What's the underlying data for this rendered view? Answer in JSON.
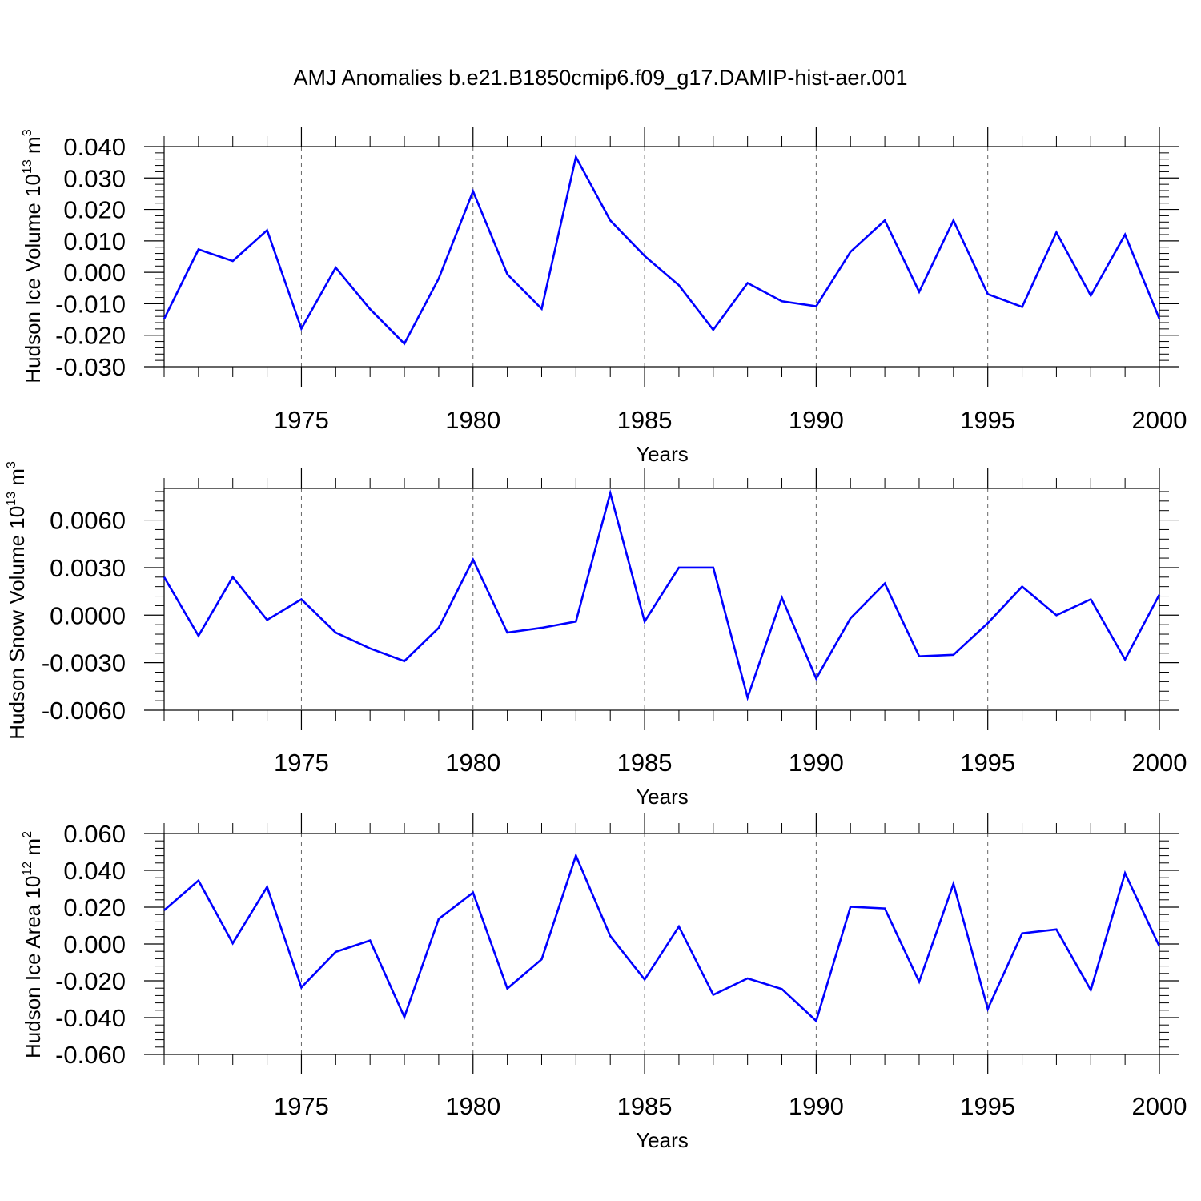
{
  "title": "AMJ Anomalies b.e21.B1850cmip6.f09_g17.DAMIP-hist-aer.001",
  "line_color": "#0000ff",
  "chart_data": [
    {
      "type": "line",
      "ylabel": "Hudson Ice Volume 10",
      "ylabel_exp": "13",
      "ylabel_unit": " m",
      "ylabel_unit_exp": "3",
      "xlabel": "Years",
      "xlim": [
        1971,
        2000
      ],
      "ylim": [
        -0.03,
        0.04
      ],
      "yticks": [
        -0.03,
        -0.02,
        -0.01,
        0.0,
        0.01,
        0.02,
        0.03,
        0.04
      ],
      "ytick_labels": [
        "-0.030",
        "-0.020",
        "-0.010",
        "0.000",
        "0.010",
        "0.020",
        "0.030",
        "0.040"
      ],
      "yminor_step": 0.002,
      "xticks": [
        1975,
        1980,
        1985,
        1990,
        1995,
        2000
      ],
      "xtick_labels": [
        "1975",
        "1980",
        "1985",
        "1990",
        "1995",
        "2000"
      ],
      "x": [
        1971,
        1972,
        1973,
        1974,
        1975,
        1976,
        1977,
        1978,
        1979,
        1980,
        1981,
        1982,
        1983,
        1984,
        1985,
        1986,
        1987,
        1988,
        1989,
        1990,
        1991,
        1992,
        1993,
        1994,
        1995,
        1996,
        1997,
        1998,
        1999,
        2000
      ],
      "values": [
        -0.0148,
        0.0073,
        0.0036,
        0.0134,
        -0.0179,
        0.0015,
        -0.0117,
        -0.0227,
        -0.002,
        0.0258,
        -0.0006,
        -0.0116,
        0.0367,
        0.0165,
        0.0052,
        -0.0041,
        -0.0183,
        -0.0034,
        -0.0092,
        -0.0108,
        0.0065,
        0.0165,
        -0.0062,
        0.0165,
        -0.0069,
        -0.011,
        0.0127,
        -0.0074,
        0.012,
        -0.0148
      ]
    },
    {
      "type": "line",
      "ylabel": "Hudson Snow Volume 10",
      "ylabel_exp": "13",
      "ylabel_unit": " m",
      "ylabel_unit_exp": "3",
      "xlabel": "Years",
      "xlim": [
        1971,
        2000
      ],
      "ylim": [
        -0.006,
        0.008
      ],
      "yticks": [
        -0.006,
        -0.003,
        0.0,
        0.003,
        0.006
      ],
      "ytick_labels": [
        "-0.0060",
        "-0.0030",
        "0.0000",
        "0.0030",
        "0.0060"
      ],
      "yminor_step": 0.0006,
      "xticks": [
        1975,
        1980,
        1985,
        1990,
        1995,
        2000
      ],
      "xtick_labels": [
        "1975",
        "1980",
        "1985",
        "1990",
        "1995",
        "2000"
      ],
      "x": [
        1971,
        1972,
        1973,
        1974,
        1975,
        1976,
        1977,
        1978,
        1979,
        1980,
        1981,
        1982,
        1983,
        1984,
        1985,
        1986,
        1987,
        1988,
        1989,
        1990,
        1991,
        1992,
        1993,
        1994,
        1995,
        1996,
        1997,
        1998,
        1999,
        2000
      ],
      "values": [
        0.0024,
        -0.0013,
        0.0024,
        -0.0003,
        0.001,
        -0.0011,
        -0.0021,
        -0.0029,
        -0.0008,
        0.0035,
        -0.0011,
        -0.0008,
        -0.0004,
        0.0077,
        -0.0004,
        0.003,
        0.003,
        -0.0052,
        0.0011,
        -0.004,
        -0.0002,
        0.002,
        -0.0026,
        -0.0025,
        -0.0005,
        0.0018,
        0.0,
        0.001,
        -0.0028,
        0.0013
      ]
    },
    {
      "type": "line",
      "ylabel": "Hudson Ice Area 10",
      "ylabel_exp": "12",
      "ylabel_unit": " m",
      "ylabel_unit_exp": "2",
      "xlabel": "Years",
      "xlim": [
        1971,
        2000
      ],
      "ylim": [
        -0.06,
        0.06
      ],
      "yticks": [
        -0.06,
        -0.04,
        -0.02,
        0.0,
        0.02,
        0.04,
        0.06
      ],
      "ytick_labels": [
        "-0.060",
        "-0.040",
        "-0.020",
        "0.000",
        "0.020",
        "0.040",
        "0.060"
      ],
      "yminor_step": 0.004,
      "xticks": [
        1975,
        1980,
        1985,
        1990,
        1995,
        2000
      ],
      "xtick_labels": [
        "1975",
        "1980",
        "1985",
        "1990",
        "1995",
        "2000"
      ],
      "x": [
        1971,
        1972,
        1973,
        1974,
        1975,
        1976,
        1977,
        1978,
        1979,
        1980,
        1981,
        1982,
        1983,
        1984,
        1985,
        1986,
        1987,
        1988,
        1989,
        1990,
        1991,
        1992,
        1993,
        1994,
        1995,
        1996,
        1997,
        1998,
        1999,
        2000
      ],
      "values": [
        0.0183,
        0.0345,
        0.0004,
        0.031,
        -0.0236,
        -0.0043,
        0.0019,
        -0.0397,
        0.0136,
        0.0279,
        -0.0242,
        -0.0083,
        0.048,
        0.0043,
        -0.0193,
        0.0095,
        -0.0276,
        -0.0187,
        -0.0245,
        -0.0418,
        0.0202,
        0.0193,
        -0.0205,
        0.0327,
        -0.0353,
        0.0058,
        0.0079,
        -0.025,
        0.0385,
        -0.0013
      ]
    }
  ]
}
